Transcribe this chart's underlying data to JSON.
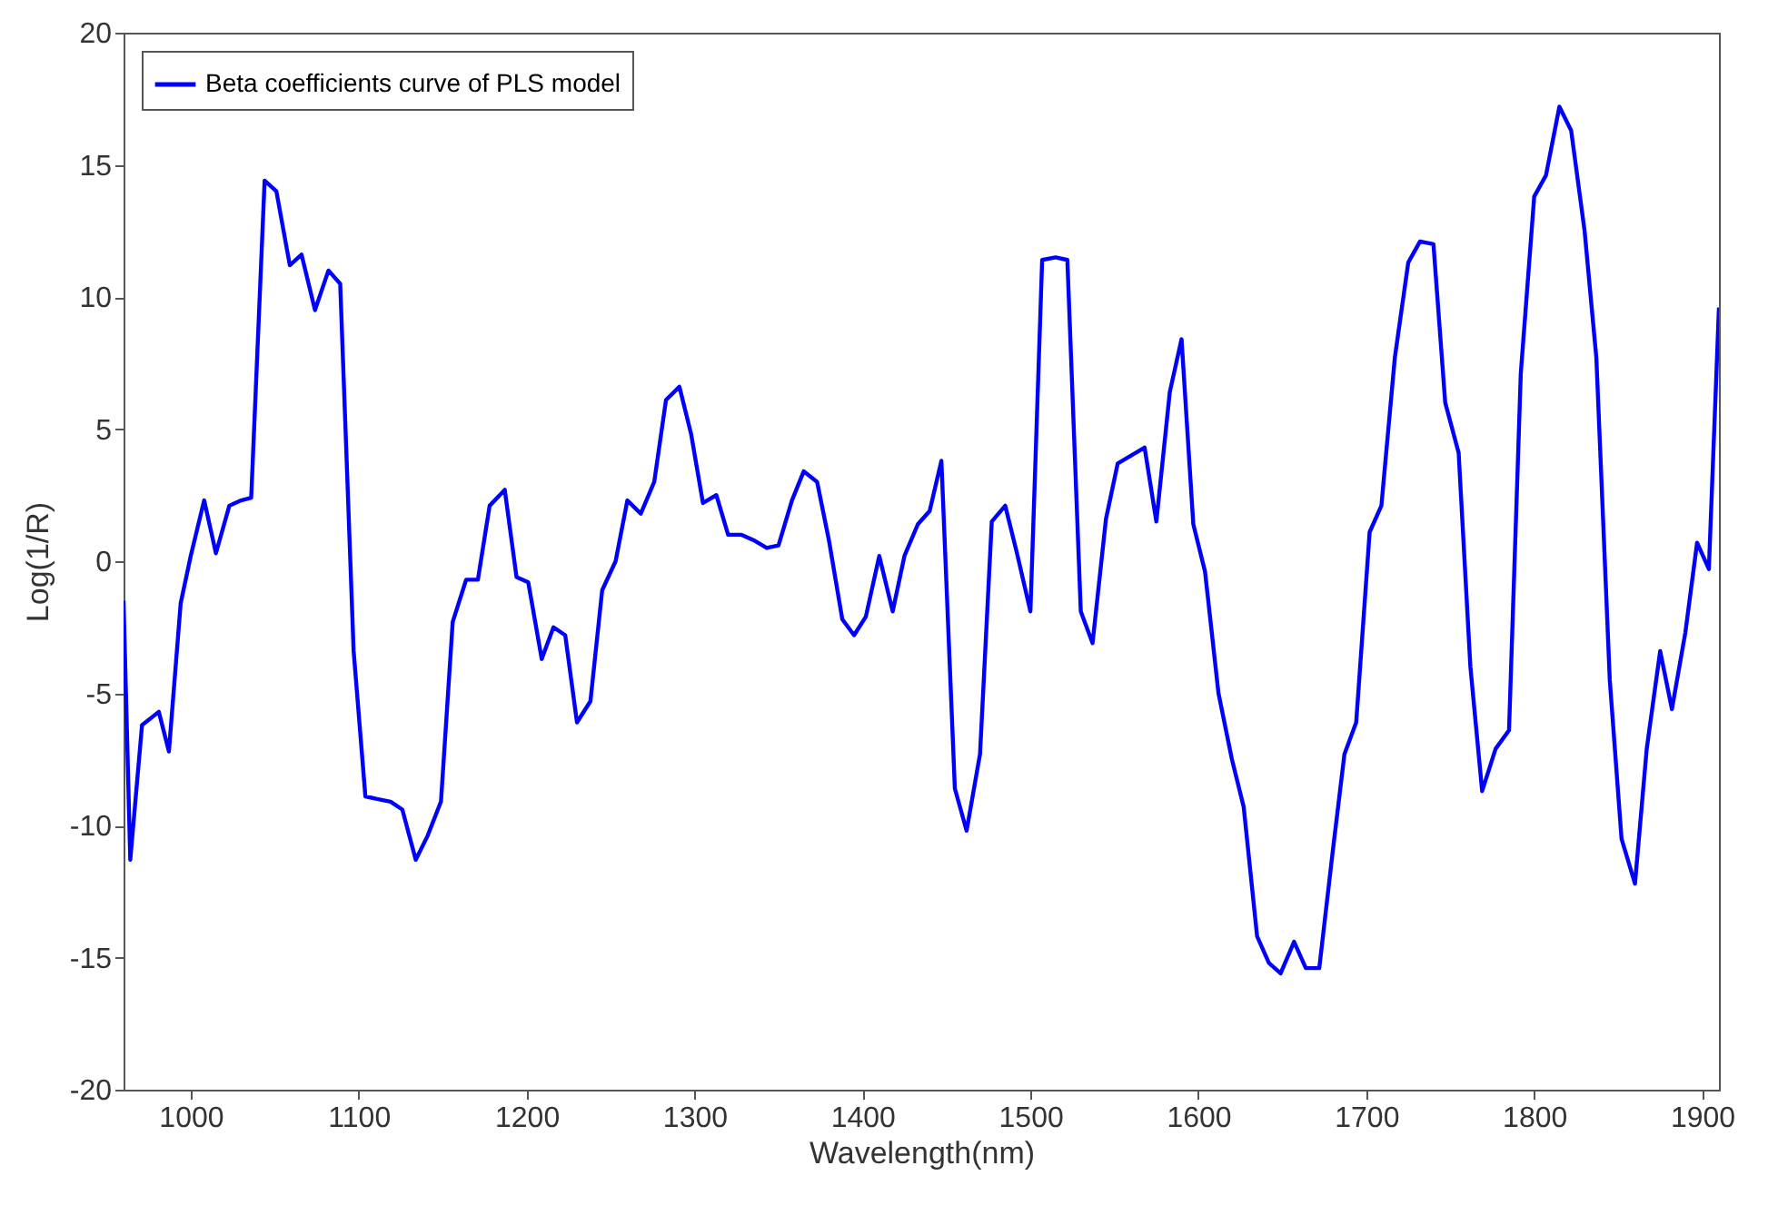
{
  "chart_data": {
    "type": "line",
    "xlabel": "Wavelength(nm)",
    "ylabel": "Log(1/R)",
    "xlim": [
      960,
      1910
    ],
    "ylim": [
      -20,
      20
    ],
    "xticks": [
      1000,
      1100,
      1200,
      1300,
      1400,
      1500,
      1600,
      1700,
      1800,
      1900
    ],
    "yticks": [
      -20,
      -15,
      -10,
      -5,
      0,
      5,
      10,
      15,
      20
    ],
    "grid": false,
    "legend": "top left",
    "line_style": "solid",
    "marker": "none",
    "series": [
      {
        "name": "Beta coefficients curve of PLS model",
        "color": "#0000ff",
        "x": [
          960,
          964,
          971,
          981,
          987,
          994,
          1000,
          1008,
          1015,
          1023,
          1030,
          1036,
          1044,
          1051,
          1059,
          1066,
          1074,
          1082,
          1089,
          1097,
          1104,
          1111,
          1119,
          1126,
          1134,
          1141,
          1149,
          1156,
          1164,
          1171,
          1178,
          1187,
          1194,
          1201,
          1209,
          1216,
          1223,
          1230,
          1238,
          1245,
          1253,
          1260,
          1268,
          1276,
          1283,
          1291,
          1298,
          1305,
          1313,
          1320,
          1328,
          1335,
          1343,
          1350,
          1358,
          1365,
          1373,
          1380,
          1388,
          1395,
          1402,
          1410,
          1418,
          1425,
          1433,
          1440,
          1447,
          1455,
          1462,
          1470,
          1477,
          1485,
          1492,
          1500,
          1507,
          1515,
          1522,
          1530,
          1537,
          1545,
          1552,
          1560,
          1568,
          1575,
          1583,
          1590,
          1597,
          1604,
          1612,
          1620,
          1627,
          1635,
          1642,
          1649,
          1657,
          1664,
          1672,
          1680,
          1687,
          1694,
          1702,
          1709,
          1717,
          1725,
          1732,
          1740,
          1747,
          1755,
          1762,
          1769,
          1777,
          1785,
          1792,
          1800,
          1807,
          1815,
          1822,
          1830,
          1837,
          1845,
          1852,
          1860,
          1867,
          1875,
          1882,
          1890,
          1897,
          1904,
          1910
        ],
        "values": [
          -1.5,
          -11.3,
          -6.2,
          -5.7,
          -7.2,
          -1.6,
          0.2,
          2.3,
          0.3,
          2.1,
          2.3,
          2.4,
          14.4,
          14.0,
          11.2,
          11.6,
          9.5,
          11.0,
          10.5,
          -3.4,
          -8.9,
          -9.0,
          -9.1,
          -9.4,
          -11.3,
          -10.4,
          -9.1,
          -2.3,
          -0.7,
          -0.7,
          2.1,
          2.7,
          -0.6,
          -0.8,
          -3.7,
          -2.5,
          -2.8,
          -6.1,
          -5.3,
          -1.1,
          0.0,
          2.3,
          1.8,
          3.0,
          6.1,
          6.6,
          4.8,
          2.2,
          2.5,
          1.0,
          1.0,
          0.8,
          0.5,
          0.6,
          2.3,
          3.4,
          3.0,
          0.8,
          -2.2,
          -2.8,
          -2.1,
          0.2,
          -1.9,
          0.2,
          1.4,
          1.9,
          3.8,
          -8.6,
          -10.2,
          -7.3,
          1.5,
          2.1,
          0.3,
          -1.9,
          11.4,
          11.5,
          11.4,
          -1.9,
          -3.1,
          1.6,
          3.7,
          4.0,
          4.3,
          1.5,
          6.4,
          8.4,
          1.4,
          -0.4,
          -5.0,
          -7.5,
          -9.3,
          -14.2,
          -15.2,
          -15.6,
          -14.4,
          -15.4,
          -15.4,
          -11.0,
          -7.3,
          -6.1,
          1.1,
          2.1,
          7.7,
          11.3,
          12.1,
          12.0,
          6.0,
          4.1,
          -4.0,
          -8.7,
          -7.1,
          -6.4,
          7.1,
          13.8,
          14.6,
          17.2,
          16.3,
          12.5,
          7.7,
          -4.5,
          -10.5,
          -12.2,
          -7.1,
          -3.4,
          -5.6,
          -2.7,
          0.7,
          -0.3,
          9.6
        ]
      }
    ]
  }
}
